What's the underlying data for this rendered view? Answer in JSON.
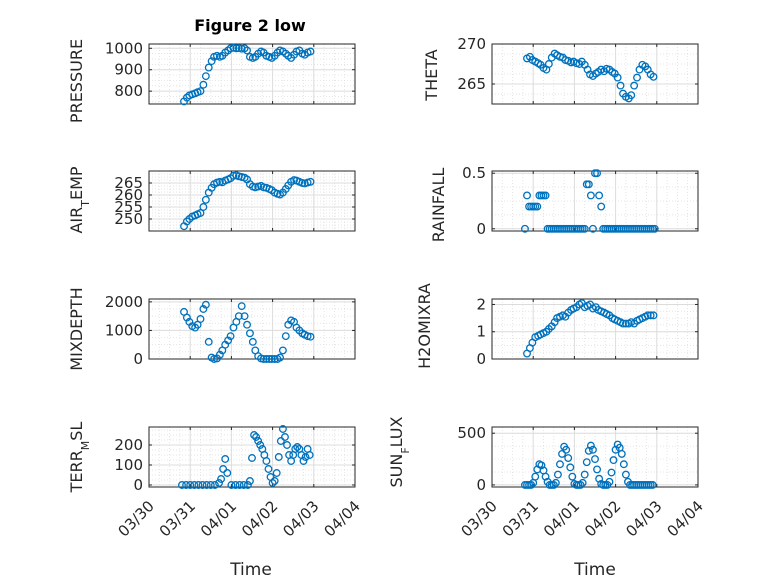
{
  "figure": {
    "title": "Figure 2 low",
    "marker_color": "#0072BD",
    "axis_color": "#262626",
    "grid_color": "#dcdcdc",
    "xlabel": "Time",
    "xticks": [
      "03/30",
      "03/31",
      "04/01",
      "04/02",
      "04/03",
      "04/04"
    ]
  },
  "chart_data": [
    {
      "type": "scatter",
      "title": "Figure 2 low",
      "ylabel": "PRESSURE",
      "xlim": [
        "03/30",
        "04/04"
      ],
      "ylim": [
        740,
        1020
      ],
      "yticks": [
        800,
        900,
        1000
      ],
      "grid": true,
      "x_days": [
        0.85,
        0.92,
        0.98,
        1.05,
        1.12,
        1.18,
        1.25,
        1.32,
        1.38,
        1.45,
        1.52,
        1.58,
        1.65,
        1.72,
        1.78,
        1.85,
        1.92,
        1.98,
        2.05,
        2.12,
        2.18,
        2.25,
        2.32,
        2.38,
        2.45,
        2.52,
        2.58,
        2.65,
        2.72,
        2.78,
        2.85,
        2.92,
        2.98,
        3.05,
        3.12,
        3.18,
        3.25,
        3.32,
        3.38,
        3.45,
        3.52,
        3.58,
        3.65,
        3.72,
        3.78,
        3.85,
        3.92
      ],
      "y": [
        752,
        770,
        780,
        785,
        790,
        795,
        800,
        830,
        870,
        910,
        940,
        960,
        965,
        960,
        965,
        980,
        990,
        1000,
        1002,
        1000,
        1001,
        998,
        1000,
        990,
        960,
        955,
        960,
        975,
        985,
        980,
        965,
        960,
        955,
        965,
        980,
        990,
        985,
        975,
        965,
        955,
        970,
        985,
        990,
        975,
        970,
        980,
        985
      ]
    },
    {
      "type": "scatter",
      "ylabel": "THETA",
      "xlim": [
        "03/30",
        "04/04"
      ],
      "ylim": [
        262.5,
        270
      ],
      "yticks": [
        265,
        270
      ],
      "grid": true,
      "x_days": [
        0.85,
        0.92,
        0.98,
        1.05,
        1.12,
        1.18,
        1.25,
        1.32,
        1.38,
        1.45,
        1.52,
        1.58,
        1.65,
        1.72,
        1.78,
        1.85,
        1.92,
        1.98,
        2.05,
        2.12,
        2.18,
        2.25,
        2.32,
        2.38,
        2.45,
        2.52,
        2.58,
        2.65,
        2.72,
        2.78,
        2.85,
        2.92,
        2.98,
        3.05,
        3.12,
        3.18,
        3.25,
        3.32,
        3.38,
        3.45,
        3.52,
        3.58,
        3.65,
        3.72,
        3.78,
        3.85,
        3.92
      ],
      "y": [
        268.2,
        268.4,
        268.0,
        267.8,
        267.6,
        267.4,
        267.0,
        266.8,
        267.5,
        268.3,
        268.8,
        268.6,
        268.4,
        268.3,
        268.0,
        267.9,
        267.7,
        267.8,
        267.6,
        267.5,
        267.8,
        267.4,
        266.8,
        266.2,
        266.0,
        266.3,
        266.5,
        266.8,
        266.6,
        266.9,
        266.8,
        266.5,
        266.3,
        265.8,
        264.8,
        263.8,
        263.4,
        263.2,
        263.6,
        264.8,
        265.8,
        266.8,
        267.4,
        267.2,
        266.8,
        266.2,
        265.9
      ]
    },
    {
      "type": "scatter",
      "ylabel": "AIR_TEMP",
      "xlim": [
        "03/30",
        "04/04"
      ],
      "ylim": [
        245,
        270
      ],
      "yticks": [
        250,
        255,
        260,
        265
      ],
      "grid": true,
      "x_days": [
        0.85,
        0.92,
        0.98,
        1.05,
        1.12,
        1.18,
        1.25,
        1.32,
        1.38,
        1.45,
        1.52,
        1.58,
        1.65,
        1.72,
        1.78,
        1.85,
        1.92,
        1.98,
        2.05,
        2.12,
        2.18,
        2.25,
        2.32,
        2.38,
        2.45,
        2.52,
        2.58,
        2.65,
        2.72,
        2.78,
        2.85,
        2.92,
        2.98,
        3.05,
        3.12,
        3.18,
        3.25,
        3.32,
        3.38,
        3.45,
        3.52,
        3.58,
        3.65,
        3.72,
        3.78,
        3.85,
        3.92
      ],
      "y": [
        247,
        249,
        250,
        251,
        251.5,
        252,
        252.5,
        255,
        258,
        261,
        263,
        264.5,
        265.2,
        265.5,
        265.3,
        266,
        266.5,
        267,
        268,
        268.2,
        267.8,
        267.5,
        267.2,
        266.5,
        264.5,
        263.5,
        263.2,
        263.5,
        263.8,
        263.2,
        263,
        262.5,
        262,
        261,
        260.5,
        260.2,
        261,
        262.5,
        264,
        265.5,
        266.2,
        266,
        265.5,
        265,
        264.8,
        265.2,
        265.5
      ]
    },
    {
      "type": "scatter",
      "ylabel": "RAINFALL",
      "xlim": [
        "03/30",
        "04/04"
      ],
      "ylim": [
        -0.02,
        0.52
      ],
      "yticks": [
        0,
        0.5
      ],
      "grid": true,
      "x_days": [
        0.8,
        0.85,
        0.9,
        0.95,
        1.0,
        1.05,
        1.1,
        1.15,
        1.2,
        1.25,
        1.3,
        1.35,
        1.4,
        1.45,
        1.5,
        1.55,
        1.6,
        1.65,
        1.7,
        1.75,
        1.8,
        1.85,
        1.9,
        1.95,
        2.0,
        2.05,
        2.1,
        2.15,
        2.2,
        2.25,
        2.3,
        2.35,
        2.4,
        2.45,
        2.5,
        2.55,
        2.6,
        2.65,
        2.7,
        2.75,
        2.8,
        2.85,
        2.9,
        2.95,
        3.0,
        3.05,
        3.1,
        3.15,
        3.2,
        3.25,
        3.3,
        3.35,
        3.4,
        3.45,
        3.5,
        3.55,
        3.6,
        3.65,
        3.7,
        3.75,
        3.8,
        3.85,
        3.9,
        3.95
      ],
      "y": [
        0,
        0.3,
        0.2,
        0.2,
        0.2,
        0.2,
        0.2,
        0.3,
        0.3,
        0.3,
        0.3,
        0,
        0,
        0,
        0,
        0,
        0,
        0,
        0,
        0,
        0,
        0,
        0,
        0,
        0,
        0,
        0,
        0,
        0,
        0,
        0.4,
        0.4,
        0.3,
        0,
        0.5,
        0.5,
        0.3,
        0.2,
        0,
        0,
        0,
        0,
        0,
        0,
        0,
        0,
        0,
        0,
        0,
        0,
        0,
        0,
        0,
        0,
        0,
        0,
        0,
        0,
        0,
        0,
        0,
        0,
        0,
        0
      ]
    },
    {
      "type": "scatter",
      "ylabel": "MIXDEPTH",
      "xlim": [
        "03/30",
        "04/04"
      ],
      "ylim": [
        0,
        2100
      ],
      "yticks": [
        0,
        1000,
        2000
      ],
      "grid": true,
      "x_days": [
        0.85,
        0.92,
        0.98,
        1.05,
        1.12,
        1.18,
        1.25,
        1.32,
        1.38,
        1.45,
        1.52,
        1.58,
        1.65,
        1.72,
        1.78,
        1.85,
        1.92,
        1.98,
        2.05,
        2.12,
        2.18,
        2.25,
        2.32,
        2.38,
        2.45,
        2.52,
        2.58,
        2.65,
        2.72,
        2.78,
        2.85,
        2.92,
        2.98,
        3.05,
        3.12,
        3.18,
        3.25,
        3.32,
        3.38,
        3.45,
        3.52,
        3.58,
        3.65,
        3.72,
        3.78,
        3.85,
        3.92
      ],
      "y": [
        1650,
        1450,
        1300,
        1150,
        1100,
        1200,
        1400,
        1750,
        1900,
        600,
        50,
        0,
        20,
        150,
        300,
        500,
        650,
        800,
        1100,
        1300,
        1500,
        1850,
        1500,
        1200,
        900,
        600,
        300,
        100,
        20,
        0,
        0,
        0,
        0,
        0,
        0,
        50,
        300,
        800,
        1200,
        1350,
        1300,
        1100,
        1000,
        900,
        850,
        800,
        780
      ]
    },
    {
      "type": "scatter",
      "ylabel": "H2OMIXRA",
      "xlim": [
        "03/30",
        "04/04"
      ],
      "ylim": [
        0,
        2.2
      ],
      "yticks": [
        0,
        1,
        2
      ],
      "grid": true,
      "x_days": [
        0.85,
        0.92,
        0.98,
        1.05,
        1.12,
        1.18,
        1.25,
        1.32,
        1.38,
        1.45,
        1.52,
        1.58,
        1.65,
        1.72,
        1.78,
        1.85,
        1.92,
        1.98,
        2.05,
        2.12,
        2.18,
        2.25,
        2.32,
        2.38,
        2.45,
        2.52,
        2.58,
        2.65,
        2.72,
        2.78,
        2.85,
        2.92,
        2.98,
        3.05,
        3.12,
        3.18,
        3.25,
        3.32,
        3.38,
        3.45,
        3.52,
        3.58,
        3.65,
        3.72,
        3.78,
        3.85,
        3.92
      ],
      "y": [
        0.2,
        0.4,
        0.6,
        0.8,
        0.85,
        0.9,
        0.95,
        1.0,
        1.1,
        1.2,
        1.35,
        1.5,
        1.55,
        1.6,
        1.55,
        1.7,
        1.8,
        1.85,
        1.9,
        2.0,
        2.05,
        1.9,
        1.95,
        2.0,
        1.85,
        1.9,
        1.8,
        1.75,
        1.7,
        1.65,
        1.6,
        1.5,
        1.45,
        1.4,
        1.35,
        1.3,
        1.3,
        1.3,
        1.35,
        1.3,
        1.4,
        1.45,
        1.5,
        1.55,
        1.6,
        1.6,
        1.6
      ]
    },
    {
      "type": "scatter",
      "ylabel": "TERR_MSL",
      "xlim": [
        "03/30",
        "04/04"
      ],
      "ylim": [
        -10,
        290
      ],
      "yticks": [
        0,
        100,
        200
      ],
      "grid": true,
      "x_days": [
        0.8,
        0.9,
        1.0,
        1.1,
        1.2,
        1.3,
        1.4,
        1.5,
        1.6,
        1.7,
        1.75,
        1.8,
        1.85,
        1.9,
        2.0,
        2.1,
        2.2,
        2.3,
        2.4,
        2.45,
        2.5,
        2.55,
        2.6,
        2.65,
        2.7,
        2.75,
        2.8,
        2.85,
        2.9,
        2.95,
        3.0,
        3.05,
        3.1,
        3.15,
        3.2,
        3.25,
        3.3,
        3.35,
        3.4,
        3.45,
        3.5,
        3.55,
        3.6,
        3.65,
        3.7,
        3.75,
        3.8,
        3.85,
        3.9
      ],
      "y": [
        0,
        0,
        0,
        0,
        0,
        0,
        0,
        0,
        0,
        10,
        30,
        80,
        130,
        60,
        0,
        0,
        0,
        0,
        0,
        20,
        135,
        250,
        240,
        220,
        200,
        180,
        150,
        120,
        80,
        40,
        10,
        20,
        60,
        140,
        220,
        280,
        240,
        200,
        150,
        120,
        150,
        180,
        190,
        180,
        150,
        120,
        140,
        180,
        150
      ]
    },
    {
      "type": "scatter",
      "ylabel": "SUN_FLUX",
      "xlim": [
        "03/30",
        "04/04"
      ],
      "ylim": [
        -20,
        560
      ],
      "yticks": [
        0,
        500
      ],
      "grid": true,
      "x_days": [
        0.8,
        0.85,
        0.9,
        0.95,
        1.0,
        1.05,
        1.1,
        1.15,
        1.2,
        1.25,
        1.3,
        1.35,
        1.4,
        1.45,
        1.5,
        1.55,
        1.6,
        1.65,
        1.7,
        1.75,
        1.8,
        1.85,
        1.9,
        1.95,
        2.0,
        2.05,
        2.1,
        2.15,
        2.2,
        2.25,
        2.3,
        2.35,
        2.4,
        2.45,
        2.5,
        2.55,
        2.6,
        2.65,
        2.7,
        2.75,
        2.8,
        2.85,
        2.9,
        2.95,
        3.0,
        3.05,
        3.1,
        3.15,
        3.2,
        3.25,
        3.3,
        3.35,
        3.4,
        3.45,
        3.5,
        3.55,
        3.6,
        3.65,
        3.7,
        3.75,
        3.8,
        3.85,
        3.9
      ],
      "y": [
        0,
        0,
        0,
        0,
        20,
        80,
        150,
        200,
        190,
        140,
        80,
        30,
        0,
        0,
        0,
        20,
        100,
        200,
        300,
        370,
        340,
        260,
        170,
        80,
        10,
        0,
        0,
        0,
        20,
        100,
        220,
        330,
        380,
        340,
        250,
        150,
        60,
        10,
        0,
        0,
        0,
        30,
        120,
        240,
        340,
        390,
        360,
        300,
        200,
        100,
        30,
        0,
        0,
        0,
        0,
        0,
        0,
        0,
        0,
        0,
        0,
        0,
        0
      ]
    }
  ]
}
